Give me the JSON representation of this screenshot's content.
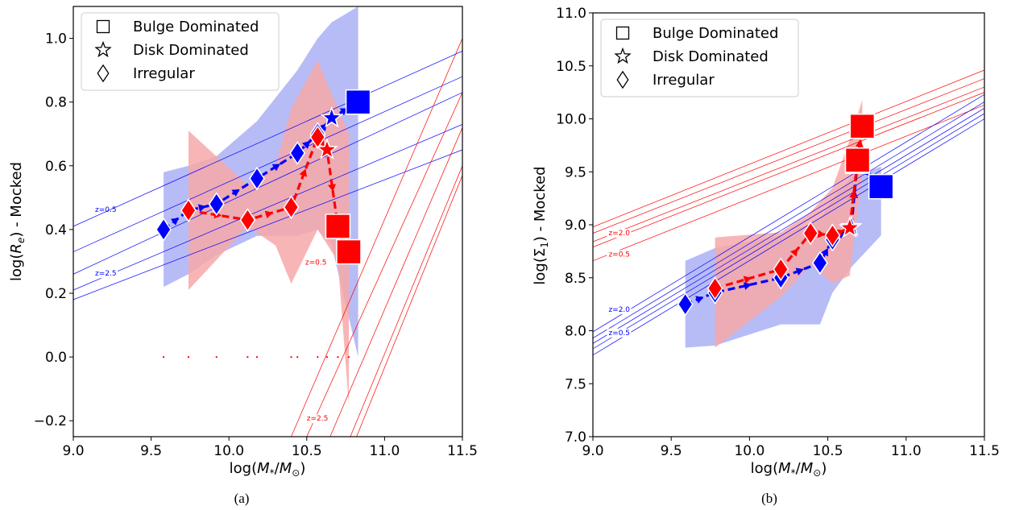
{
  "chart_data": [
    {
      "type": "line",
      "caption": "(a)",
      "xlabel": "log(M_*/M_⊙)",
      "ylabel": "log(R_e) - Mocked",
      "xlim": [
        9.0,
        11.5
      ],
      "ylim": [
        -0.25,
        1.1
      ],
      "xticks": [
        9.0,
        9.5,
        10.0,
        10.5,
        11.0,
        11.5
      ],
      "xtick_labels": [
        "9.0",
        "9.5",
        "10.0",
        "10.5",
        "11.0",
        "11.5"
      ],
      "yticks": [
        -0.2,
        0.0,
        0.2,
        0.4,
        0.6,
        0.8,
        1.0
      ],
      "ytick_labels": [
        "−0.2",
        "0.0",
        "0.2",
        "0.4",
        "0.6",
        "0.8",
        "1.0"
      ],
      "legend_position": "top-left",
      "legend": [
        {
          "marker": "square",
          "label": "Bulge Dominated"
        },
        {
          "marker": "star",
          "label": "Disk Dominated"
        },
        {
          "marker": "diamond",
          "label": "Irregular"
        }
      ],
      "colors": {
        "blue": "#0000ff",
        "red": "#ff0000",
        "blue_band": "#aab0f5",
        "red_band": "#f7a8a8"
      },
      "series": [
        {
          "color": "blue",
          "points": [
            {
              "x": 9.58,
              "y": 0.4,
              "m": "diamond"
            },
            {
              "x": 9.74,
              "y": 0.46,
              "m": "diamond"
            },
            {
              "x": 9.92,
              "y": 0.48,
              "m": "diamond"
            },
            {
              "x": 10.18,
              "y": 0.56,
              "m": "diamond"
            },
            {
              "x": 10.44,
              "y": 0.64,
              "m": "diamond"
            },
            {
              "x": 10.57,
              "y": 0.7,
              "m": "diamond"
            },
            {
              "x": 10.66,
              "y": 0.75,
              "m": "star"
            },
            {
              "x": 10.83,
              "y": 0.8,
              "m": "square"
            }
          ],
          "band_upper": [
            [
              9.58,
              0.58
            ],
            [
              9.74,
              0.6
            ],
            [
              9.92,
              0.63
            ],
            [
              10.18,
              0.74
            ],
            [
              10.44,
              0.9
            ],
            [
              10.57,
              1.0
            ],
            [
              10.66,
              1.05
            ],
            [
              10.83,
              1.1
            ]
          ],
          "band_lower": [
            [
              10.83,
              0.0
            ],
            [
              10.66,
              0.35
            ],
            [
              10.57,
              0.4
            ],
            [
              10.44,
              0.38
            ],
            [
              10.18,
              0.38
            ],
            [
              9.92,
              0.32
            ],
            [
              9.74,
              0.26
            ],
            [
              9.58,
              0.22
            ]
          ]
        },
        {
          "color": "red",
          "points": [
            {
              "x": 9.74,
              "y": 0.46,
              "m": "diamond"
            },
            {
              "x": 10.12,
              "y": 0.43,
              "m": "diamond"
            },
            {
              "x": 10.4,
              "y": 0.47,
              "m": "diamond"
            },
            {
              "x": 10.57,
              "y": 0.69,
              "m": "diamond"
            },
            {
              "x": 10.63,
              "y": 0.65,
              "m": "star"
            },
            {
              "x": 10.7,
              "y": 0.41,
              "m": "square"
            },
            {
              "x": 10.77,
              "y": 0.33,
              "m": "square"
            }
          ],
          "band_upper": [
            [
              9.74,
              0.71
            ],
            [
              10.12,
              0.54
            ],
            [
              10.3,
              0.6
            ],
            [
              10.4,
              0.78
            ],
            [
              10.57,
              0.93
            ],
            [
              10.77,
              0.7
            ]
          ],
          "band_lower": [
            [
              10.77,
              -0.15
            ],
            [
              10.7,
              0.3
            ],
            [
              10.57,
              0.4
            ],
            [
              10.4,
              0.23
            ],
            [
              10.3,
              0.35
            ],
            [
              10.12,
              0.41
            ],
            [
              9.74,
              0.21
            ]
          ]
        }
      ],
      "zero_dots_x": [
        9.58,
        9.74,
        9.92,
        10.12,
        10.18,
        10.4,
        10.44,
        10.57,
        10.63,
        10.7,
        10.77
      ],
      "ref_lines": [
        {
          "color": "blue",
          "x1": 9.0,
          "y1": 0.41,
          "x2": 11.5,
          "y2": 0.96
        },
        {
          "color": "blue",
          "x1": 9.0,
          "y1": 0.33,
          "x2": 11.5,
          "y2": 0.88
        },
        {
          "color": "blue",
          "x1": 9.0,
          "y1": 0.26,
          "x2": 11.5,
          "y2": 0.83
        },
        {
          "color": "blue",
          "x1": 9.0,
          "y1": 0.21,
          "x2": 11.5,
          "y2": 0.73
        },
        {
          "color": "blue",
          "x1": 9.0,
          "y1": 0.18,
          "x2": 11.5,
          "y2": 0.65
        },
        {
          "color": "red",
          "x1": 10.4,
          "y1": -0.25,
          "x2": 11.5,
          "y2": 1.0
        },
        {
          "color": "red",
          "x1": 10.5,
          "y1": -0.25,
          "x2": 11.5,
          "y2": 0.83
        },
        {
          "color": "red",
          "x1": 10.65,
          "y1": -0.25,
          "x2": 11.5,
          "y2": 0.72
        },
        {
          "color": "red",
          "x1": 10.78,
          "y1": -0.25,
          "x2": 11.5,
          "y2": 0.6
        },
        {
          "color": "red",
          "x1": 10.82,
          "y1": -0.25,
          "x2": 11.5,
          "y2": 0.57
        }
      ],
      "annotations": [
        {
          "text": "z=0.5",
          "x": 9.14,
          "y": 0.455,
          "color": "blue",
          "box": false
        },
        {
          "text": "z=2.5",
          "x": 9.14,
          "y": 0.255,
          "color": "blue",
          "box": true
        },
        {
          "text": "z=0.5",
          "x": 10.49,
          "y": 0.29,
          "color": "red",
          "box": true
        },
        {
          "text": "z=2.5",
          "x": 10.5,
          "y": -0.2,
          "color": "red",
          "box": true
        }
      ]
    },
    {
      "type": "line",
      "caption": "(b)",
      "xlabel": "log(M_*/M_⊙)",
      "ylabel": "log(Σ_1) - Mocked",
      "xlim": [
        9.0,
        11.5
      ],
      "ylim": [
        7.0,
        11.0
      ],
      "xticks": [
        9.0,
        9.5,
        10.0,
        10.5,
        11.0,
        11.5
      ],
      "xtick_labels": [
        "9.0",
        "9.5",
        "10.0",
        "10.5",
        "11.0",
        "11.5"
      ],
      "yticks": [
        7.0,
        7.5,
        8.0,
        8.5,
        9.0,
        9.5,
        10.0,
        10.5,
        11.0
      ],
      "ytick_labels": [
        "7.0",
        "7.5",
        "8.0",
        "8.5",
        "9.0",
        "9.5",
        "10.0",
        "10.5",
        "11.0"
      ],
      "legend_position": "top-left",
      "legend": [
        {
          "marker": "square",
          "label": "Bulge Dominated"
        },
        {
          "marker": "star",
          "label": "Disk Dominated"
        },
        {
          "marker": "diamond",
          "label": "Irregular"
        }
      ],
      "colors": {
        "blue": "#0000ff",
        "red": "#ff0000",
        "blue_band": "#aab0f5",
        "red_band": "#f7a8a8"
      },
      "series": [
        {
          "color": "blue",
          "points": [
            {
              "x": 9.59,
              "y": 8.25,
              "m": "diamond"
            },
            {
              "x": 9.78,
              "y": 8.36,
              "m": "diamond"
            },
            {
              "x": 10.2,
              "y": 8.5,
              "m": "diamond"
            },
            {
              "x": 10.45,
              "y": 8.64,
              "m": "diamond"
            },
            {
              "x": 10.53,
              "y": 8.86,
              "m": "diamond"
            },
            {
              "x": 10.65,
              "y": 8.98,
              "m": "star"
            },
            {
              "x": 10.69,
              "y": 9.6,
              "m": "square"
            },
            {
              "x": 10.84,
              "y": 9.36,
              "m": "square"
            }
          ],
          "band_upper": [
            [
              9.59,
              8.66
            ],
            [
              9.78,
              8.78
            ],
            [
              10.2,
              8.9
            ],
            [
              10.45,
              9.05
            ],
            [
              10.53,
              9.25
            ],
            [
              10.65,
              9.45
            ],
            [
              10.84,
              9.55
            ]
          ],
          "band_lower": [
            [
              10.84,
              8.9
            ],
            [
              10.65,
              8.6
            ],
            [
              10.53,
              8.36
            ],
            [
              10.45,
              8.06
            ],
            [
              10.2,
              8.06
            ],
            [
              9.78,
              7.86
            ],
            [
              9.59,
              7.84
            ]
          ]
        },
        {
          "color": "red",
          "points": [
            {
              "x": 9.78,
              "y": 8.4,
              "m": "diamond"
            },
            {
              "x": 10.2,
              "y": 8.58,
              "m": "diamond"
            },
            {
              "x": 10.39,
              "y": 8.92,
              "m": "diamond"
            },
            {
              "x": 10.53,
              "y": 8.9,
              "m": "diamond"
            },
            {
              "x": 10.64,
              "y": 8.97,
              "m": "star"
            },
            {
              "x": 10.69,
              "y": 9.61,
              "m": "square"
            },
            {
              "x": 10.72,
              "y": 9.93,
              "m": "square"
            }
          ],
          "band_upper": [
            [
              9.78,
              8.88
            ],
            [
              10.2,
              8.93
            ],
            [
              10.39,
              9.12
            ],
            [
              10.53,
              9.35
            ],
            [
              10.64,
              9.8
            ],
            [
              10.72,
              10.18
            ]
          ],
          "band_lower": [
            [
              10.72,
              9.5
            ],
            [
              10.64,
              8.52
            ],
            [
              10.53,
              8.45
            ],
            [
              10.39,
              8.62
            ],
            [
              10.2,
              8.32
            ],
            [
              9.78,
              7.84
            ]
          ]
        }
      ],
      "ref_lines": [
        {
          "color": "red",
          "x1": 9.0,
          "y1": 8.98,
          "x2": 11.5,
          "y2": 10.46
        },
        {
          "color": "red",
          "x1": 9.0,
          "y1": 8.92,
          "x2": 11.5,
          "y2": 10.38
        },
        {
          "color": "red",
          "x1": 9.0,
          "y1": 8.84,
          "x2": 11.5,
          "y2": 10.3
        },
        {
          "color": "red",
          "x1": 9.0,
          "y1": 8.79,
          "x2": 11.5,
          "y2": 10.25
        },
        {
          "color": "red",
          "x1": 9.0,
          "y1": 8.66,
          "x2": 11.5,
          "y2": 10.13
        },
        {
          "color": "blue",
          "x1": 9.0,
          "y1": 7.99,
          "x2": 11.5,
          "y2": 10.23
        },
        {
          "color": "blue",
          "x1": 9.0,
          "y1": 7.93,
          "x2": 11.5,
          "y2": 10.16
        },
        {
          "color": "blue",
          "x1": 9.0,
          "y1": 7.88,
          "x2": 11.5,
          "y2": 10.1
        },
        {
          "color": "blue",
          "x1": 9.0,
          "y1": 7.83,
          "x2": 11.5,
          "y2": 10.05
        },
        {
          "color": "blue",
          "x1": 9.0,
          "y1": 7.77,
          "x2": 11.5,
          "y2": 10.0
        }
      ],
      "annotations": [
        {
          "text": "z=2.0",
          "x": 9.1,
          "y": 8.9,
          "color": "red",
          "box": true
        },
        {
          "text": "z=0.5",
          "x": 9.1,
          "y": 8.7,
          "color": "red",
          "box": true
        },
        {
          "text": "z=2.0",
          "x": 9.1,
          "y": 8.18,
          "color": "blue",
          "box": true
        },
        {
          "text": "z=0.5",
          "x": 9.1,
          "y": 7.96,
          "color": "blue",
          "box": true
        }
      ]
    }
  ]
}
